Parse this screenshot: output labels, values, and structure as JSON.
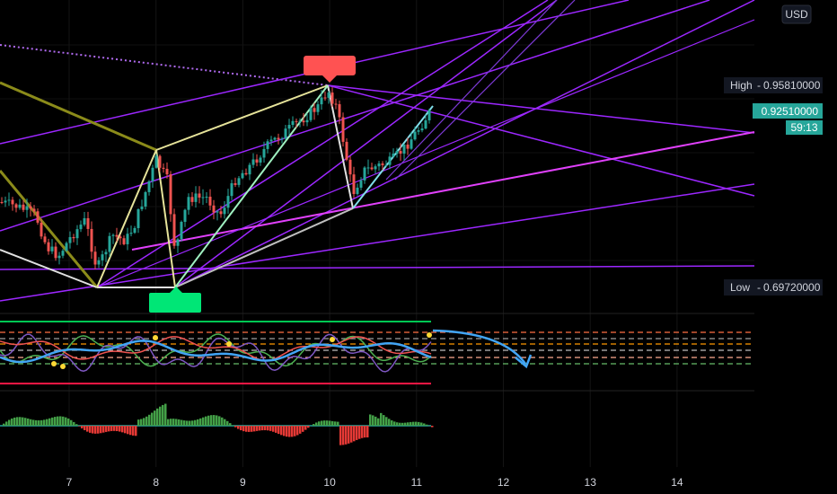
{
  "chart_data": {
    "type": "candlestick",
    "currency": "USD",
    "price_labels": {
      "high_label": "High",
      "high_value": "0.95810000",
      "last_value": "0.92510000",
      "countdown": "59:13",
      "low_label": "Low",
      "low_value": "0.69720000"
    },
    "x_ticks": [
      "7",
      "8",
      "9",
      "10",
      "11",
      "12",
      "13",
      "14"
    ],
    "price_range": [
      0.6,
      1.05
    ],
    "pivots": [
      {
        "label": "swing-high",
        "day": 9.98,
        "price": 0.9581
      },
      {
        "label": "swing-low",
        "day": 8.24,
        "price": 0.6972
      }
    ],
    "colors": {
      "up": "#26a69a",
      "down": "#ef5350",
      "purple": "#9c27ff",
      "magenta": "#e040fb",
      "olive": "#8b8b1a",
      "pale_yellow": "#e6e39a",
      "mint": "#9ff0c0",
      "high_marker": "#ff5252",
      "low_marker": "#00e676",
      "last_badge": "#26a69a",
      "label_bg": "#131722"
    }
  }
}
